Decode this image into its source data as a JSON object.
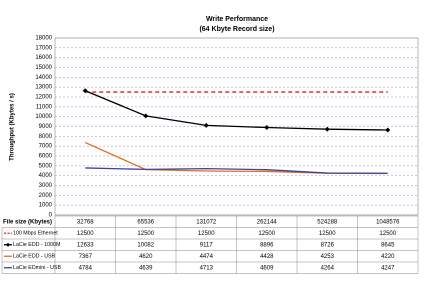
{
  "chart_data": {
    "type": "line",
    "title": "Write Performance",
    "subtitle": "(64 Kbyte Record size)",
    "y_label": "Throughput (Kbytes / s)",
    "x_label": "File size (Kbytes)",
    "categories": [
      "32768",
      "65536",
      "131072",
      "262144",
      "524288",
      "1048576"
    ],
    "series": [
      {
        "name": "100 Mbps Ethernet",
        "color": "#e02020",
        "dash": true,
        "values": [
          12500,
          12500,
          12500,
          12500,
          12500,
          12500
        ]
      },
      {
        "name": "LaCie EDD - 1000M",
        "color": "#000000",
        "marker": "diamond",
        "values": [
          12633,
          10082,
          9117,
          8896,
          8726,
          8645
        ]
      },
      {
        "name": "LaCie EDD - USB",
        "color": "#e07020",
        "values": [
          7367,
          4620,
          4474,
          4428,
          4253,
          4220
        ]
      },
      {
        "name": "LaCie EDmini - USB",
        "color": "#4040a0",
        "values": [
          4784,
          4639,
          4713,
          4609,
          4264,
          4247
        ]
      }
    ],
    "ylim": [
      0,
      18000
    ],
    "yticks": [
      0,
      1000,
      2000,
      3000,
      4000,
      5000,
      6000,
      7000,
      8000,
      9000,
      10000,
      11000,
      12000,
      13000,
      14000,
      15000,
      16000,
      17000,
      18000
    ],
    "grid": true
  }
}
